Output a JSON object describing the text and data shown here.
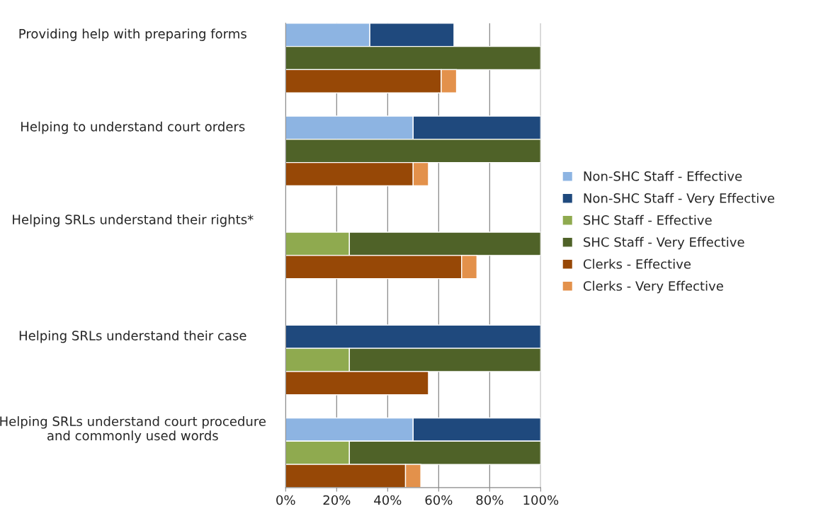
{
  "chart_data": {
    "type": "bar",
    "orientation": "horizontal",
    "stacked": true,
    "categories": [
      "Providing help with preparing forms",
      null,
      null,
      null,
      "Helping to understand court orders",
      null,
      null,
      null,
      "Helping SRLs understand their rights*",
      null,
      null,
      null,
      null,
      "Helping SRLs understand their case",
      null,
      null,
      null,
      "Helping SRLs understand court procedure and commonly used words",
      null,
      null
    ],
    "series": [
      {
        "name": "Non-SHC Staff - Effective",
        "color": "#8db4e2",
        "values": [
          33,
          null,
          null,
          null,
          50,
          null,
          null,
          null,
          null,
          null,
          null,
          null,
          null,
          null,
          null,
          null,
          null,
          50,
          null,
          null
        ]
      },
      {
        "name": "Non-SHC Staff - Very Effective",
        "color": "#1f497d",
        "values": [
          33,
          null,
          null,
          null,
          50,
          null,
          null,
          null,
          null,
          null,
          null,
          null,
          null,
          100,
          null,
          null,
          null,
          50,
          null,
          null
        ]
      },
      {
        "name": "SHC Staff - Effective",
        "color": "#8faa4f",
        "values": [
          null,
          null,
          null,
          null,
          null,
          null,
          null,
          null,
          null,
          25,
          null,
          null,
          null,
          null,
          25,
          null,
          null,
          null,
          25,
          null
        ]
      },
      {
        "name": "SHC Staff - Very Effective",
        "color": "#4f6228",
        "values": [
          null,
          100,
          null,
          null,
          null,
          100,
          null,
          null,
          null,
          75,
          null,
          null,
          null,
          null,
          75,
          null,
          null,
          null,
          75,
          null
        ]
      },
      {
        "name": "Clerks - Effective",
        "color": "#974806",
        "values": [
          null,
          null,
          61,
          null,
          null,
          null,
          50,
          null,
          null,
          null,
          69,
          null,
          null,
          null,
          null,
          56,
          null,
          null,
          null,
          47
        ]
      },
      {
        "name": "Clerks - Very Effective",
        "color": "#e3914b",
        "values": [
          null,
          null,
          6,
          null,
          null,
          null,
          6,
          null,
          null,
          null,
          6,
          null,
          null,
          null,
          null,
          null,
          null,
          null,
          null,
          6
        ]
      }
    ],
    "xlim": [
      0,
      100
    ],
    "xticks": [
      {
        "value": 0,
        "label": "0%"
      },
      {
        "value": 20,
        "label": "20%"
      },
      {
        "value": 40,
        "label": "40%"
      },
      {
        "value": 60,
        "label": "60%"
      },
      {
        "value": 80,
        "label": "80%"
      },
      {
        "value": 100,
        "label": "100%"
      }
    ],
    "grid": "x",
    "legend": "right"
  }
}
